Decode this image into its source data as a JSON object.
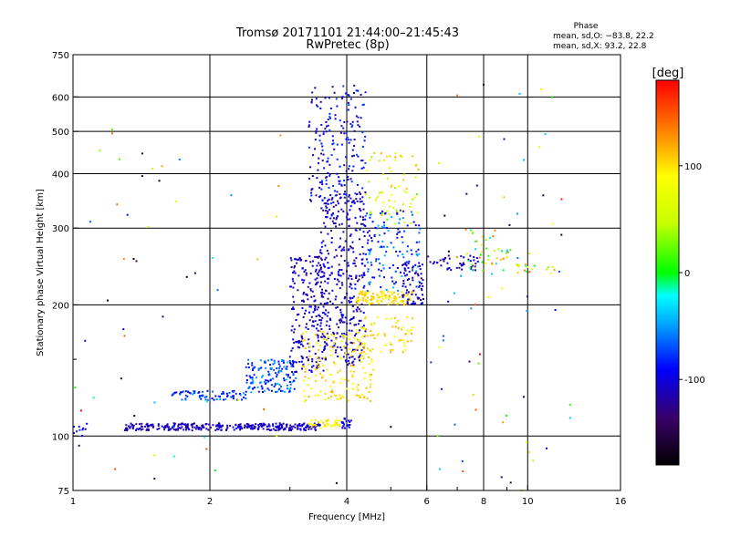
{
  "chart_data": {
    "type": "scatter",
    "title": "Tromsø 20171101 21:44:00–21:45:43",
    "subtitle": "RwPretec (8p)",
    "xlabel": "Frequency [MHz]",
    "ylabel": "Stationary phase Virtual Height [km]",
    "x_scale": "log",
    "y_scale": "log",
    "xlim": [
      1,
      16
    ],
    "ylim": [
      75,
      750
    ],
    "x_ticks": [
      1,
      2,
      4,
      6,
      8,
      10,
      16
    ],
    "x_tick_labels": [
      "1",
      "2",
      "4",
      "6",
      "8",
      "10",
      "16"
    ],
    "x_minor": [
      3,
      5,
      7,
      9
    ],
    "y_ticks": [
      75,
      100,
      200,
      300,
      400,
      500,
      600,
      750
    ],
    "y_tick_labels": [
      "75",
      "100",
      "200",
      "300",
      "400",
      "500",
      "600",
      "750"
    ],
    "y_minor": [
      150
    ],
    "grid": true,
    "phase_stats": {
      "heading": "Phase",
      "line_o": "mean, sd,O: −83.8, 22.2",
      "line_x": "mean, sd,X:  93.2, 22.8"
    },
    "colorbar": {
      "label": "[deg]",
      "range": [
        -180,
        180
      ],
      "ticks": [
        100,
        0,
        -100
      ],
      "tick_labels": [
        "100",
        "0",
        "-100"
      ]
    },
    "clusters": [
      {
        "f_min": 1.3,
        "f_max": 3.5,
        "h_min": 103,
        "h_max": 107,
        "phase_min": -125,
        "phase_max": -95,
        "count": 320
      },
      {
        "f_min": 1.0,
        "f_max": 1.08,
        "h_min": 100,
        "h_max": 108,
        "phase_min": -115,
        "phase_max": -75,
        "count": 10
      },
      {
        "f_min": 3.3,
        "f_max": 3.9,
        "h_min": 104,
        "h_max": 109,
        "phase_min": 75,
        "phase_max": 110,
        "count": 45
      },
      {
        "f_min": 3.9,
        "f_max": 4.1,
        "h_min": 104,
        "h_max": 110,
        "phase_min": -110,
        "phase_max": -85,
        "count": 20
      },
      {
        "f_min": 1.65,
        "f_max": 2.4,
        "h_min": 121,
        "h_max": 127,
        "phase_min": -110,
        "phase_max": -50,
        "count": 80
      },
      {
        "f_min": 2.4,
        "f_max": 3.1,
        "h_min": 126,
        "h_max": 150,
        "phase_min": -100,
        "phase_max": -40,
        "count": 150
      },
      {
        "f_min": 3.0,
        "f_max": 3.6,
        "h_min": 140,
        "h_max": 260,
        "phase_min": -130,
        "phase_max": -90,
        "count": 220
      },
      {
        "f_min": 3.5,
        "f_max": 4.4,
        "h_min": 145,
        "h_max": 360,
        "phase_min": -130,
        "phase_max": -85,
        "count": 360
      },
      {
        "f_min": 3.3,
        "f_max": 4.4,
        "h_min": 340,
        "h_max": 640,
        "phase_min": -125,
        "phase_max": -70,
        "count": 200
      },
      {
        "f_min": 3.2,
        "f_max": 4.6,
        "h_min": 120,
        "h_max": 175,
        "phase_min": 80,
        "phase_max": 120,
        "count": 160
      },
      {
        "f_min": 4.2,
        "f_max": 5.6,
        "h_min": 200,
        "h_max": 215,
        "phase_min": 85,
        "phase_max": 115,
        "count": 110
      },
      {
        "f_min": 4.2,
        "f_max": 5.6,
        "h_min": 155,
        "h_max": 190,
        "phase_min": 80,
        "phase_max": 120,
        "count": 70
      },
      {
        "f_min": 4.4,
        "f_max": 5.8,
        "h_min": 215,
        "h_max": 330,
        "phase_min": -110,
        "phase_max": -40,
        "count": 140
      },
      {
        "f_min": 4.4,
        "f_max": 5.8,
        "h_min": 300,
        "h_max": 450,
        "phase_min": 20,
        "phase_max": 120,
        "count": 70
      },
      {
        "f_min": 5.3,
        "f_max": 5.9,
        "h_min": 200,
        "h_max": 250,
        "phase_min": -130,
        "phase_max": -90,
        "count": 70
      },
      {
        "f_min": 6.0,
        "f_max": 7.8,
        "h_min": 240,
        "h_max": 260,
        "phase_min": -140,
        "phase_max": -90,
        "count": 45
      },
      {
        "f_min": 7.3,
        "f_max": 9.2,
        "h_min": 235,
        "h_max": 300,
        "phase_min": -40,
        "phase_max": 140,
        "count": 40
      },
      {
        "f_min": 9.4,
        "f_max": 11.5,
        "h_min": 236,
        "h_max": 248,
        "phase_min": -30,
        "phase_max": 140,
        "count": 18
      },
      {
        "f_min": 6.0,
        "f_max": 12.0,
        "h_min": 75,
        "h_max": 640,
        "phase_min": -180,
        "phase_max": 180,
        "count": 60
      },
      {
        "f_min": 1.0,
        "f_max": 3.0,
        "h_min": 75,
        "h_max": 520,
        "phase_min": -180,
        "phase_max": 180,
        "count": 45
      }
    ],
    "points": [
      {
        "f": 1.22,
        "h": 505,
        "phase": 20
      },
      {
        "f": 1.22,
        "h": 495,
        "phase": 140
      },
      {
        "f": 1.42,
        "h": 445,
        "phase": -150
      },
      {
        "f": 1.42,
        "h": 395,
        "phase": -160
      },
      {
        "f": 1.25,
        "h": 340,
        "phase": 140
      },
      {
        "f": 1.36,
        "h": 255,
        "phase": -160
      },
      {
        "f": 3.8,
        "h": 78,
        "phase": -160
      },
      {
        "f": 7.2,
        "h": 83,
        "phase": 150
      },
      {
        "f": 8.0,
        "h": 640,
        "phase": -170
      },
      {
        "f": 9.6,
        "h": 610,
        "phase": -40
      },
      {
        "f": 9.8,
        "h": 430,
        "phase": -40
      },
      {
        "f": 9.8,
        "h": 123,
        "phase": -150
      },
      {
        "f": 12.4,
        "h": 118,
        "phase": 10
      },
      {
        "f": 12.4,
        "h": 110,
        "phase": -40
      },
      {
        "f": 5.0,
        "h": 105,
        "phase": -170
      },
      {
        "f": 7.0,
        "h": 605,
        "phase": 140
      }
    ]
  }
}
